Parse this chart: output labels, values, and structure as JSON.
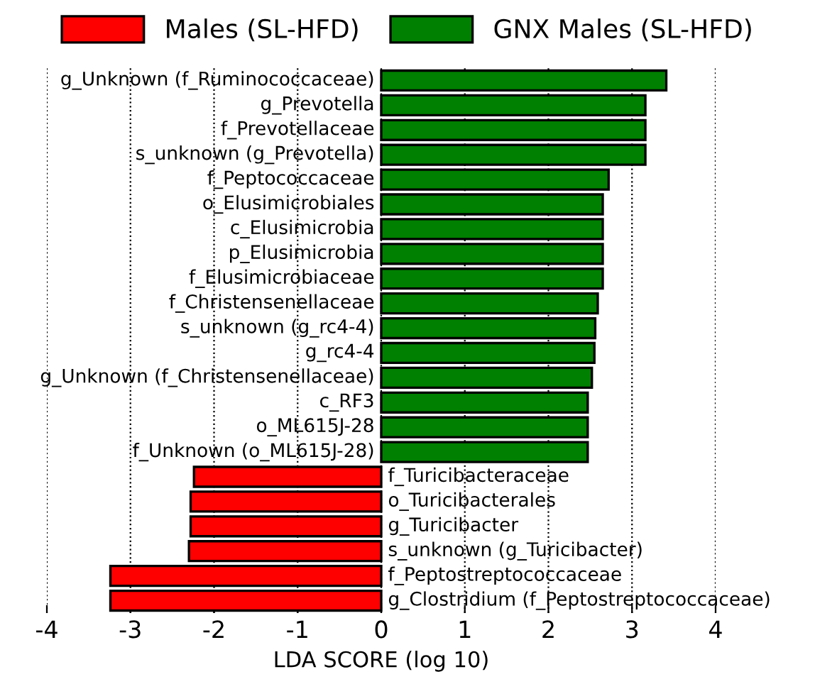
{
  "chart_data": {
    "type": "bar",
    "orientation": "horizontal",
    "xlabel": "LDA SCORE (log 10)",
    "categories": [
      "g_Unknown (f_Ruminococcaceae)",
      "g_Prevotella",
      "f_Prevotellaceae",
      "s_unknown (g_Prevotella)",
      "f_Peptococcaceae",
      "o_Elusimicrobiales",
      "c_Elusimicrobia",
      "p_Elusimicrobia",
      "f_Elusimicrobiaceae",
      "f_Christensenellaceae",
      "s_unknown (g_rc4-4)",
      "g_rc4-4",
      "g_Unknown (f_Christensenellaceae)",
      "c_RF3",
      "o_ML615J-28",
      "f_Unknown (o_ML615J-28)",
      "f_Turicibacteraceae",
      "o_Turicibacterales",
      "g_Turicibacter",
      "s_unknown (g_Turicibacter)",
      "f_Peptostreptococcaceae",
      "g_Clostridium (f_Peptostreptococcaceae)"
    ],
    "series": [
      {
        "name": "Males (SL-HFD)",
        "color": "#ff0000",
        "values": [
          null,
          null,
          null,
          null,
          null,
          null,
          null,
          null,
          null,
          null,
          null,
          null,
          null,
          null,
          null,
          null,
          -2.24,
          -2.28,
          -2.28,
          -2.3,
          -3.24,
          -3.24
        ]
      },
      {
        "name": "GNX Males (SL-HFD)",
        "color": "#008000",
        "values": [
          3.41,
          3.16,
          3.16,
          3.16,
          2.72,
          2.65,
          2.65,
          2.65,
          2.65,
          2.59,
          2.56,
          2.55,
          2.52,
          2.47,
          2.47,
          2.47,
          null,
          null,
          null,
          null,
          null,
          null
        ]
      }
    ],
    "xlim": [
      -4,
      4
    ],
    "xticks": [
      -4,
      -3,
      -2,
      -1,
      0,
      1,
      2,
      3,
      4
    ],
    "grid": "x",
    "legend": "top"
  }
}
